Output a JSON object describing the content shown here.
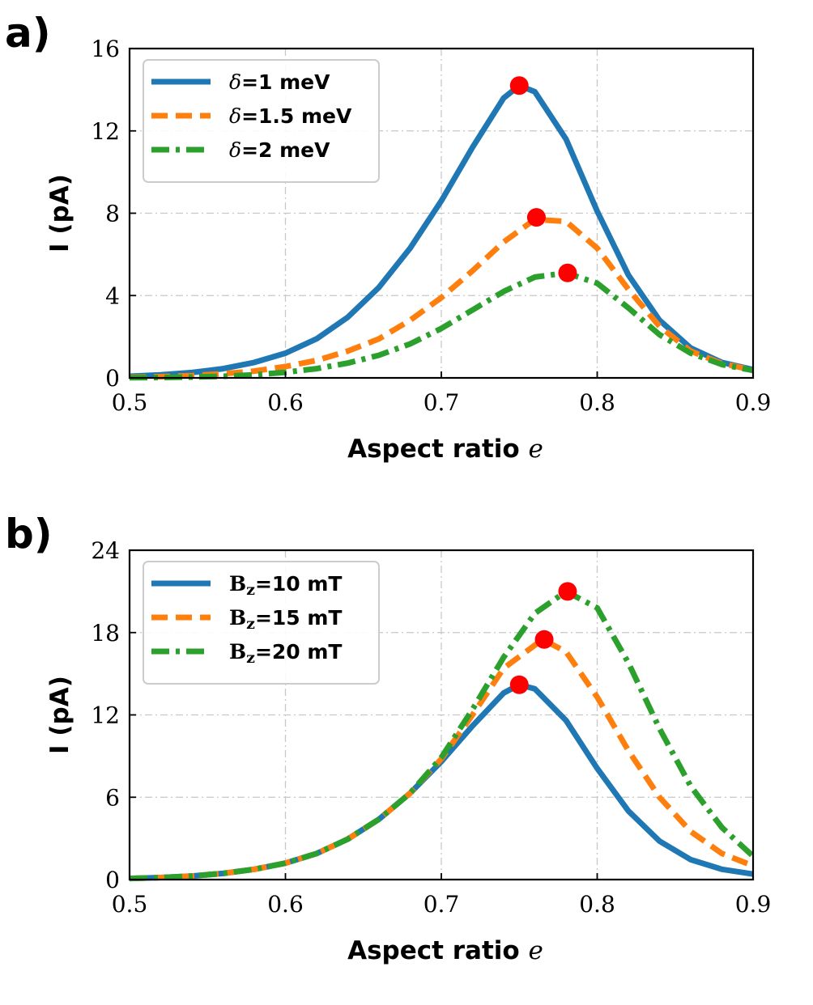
{
  "chart_data": [
    {
      "panel": "a)",
      "type": "line",
      "xlabel_text": "Aspect ratio",
      "xlabel_var": "e",
      "ylabel": "I (pA)",
      "xlim": [
        0.5,
        0.9
      ],
      "ylim": [
        0,
        16
      ],
      "xticks": [
        "0.5",
        "0.6",
        "0.7",
        "0.8",
        "0.9"
      ],
      "yticks": [
        "0",
        "4",
        "8",
        "12",
        "16"
      ],
      "legend_position": "top-left",
      "series": [
        {
          "name_symbol": "δ",
          "name_rest": "=1 meV",
          "color": "#1f77b4",
          "style": "solid",
          "x": [
            0.5,
            0.52,
            0.54,
            0.56,
            0.58,
            0.6,
            0.62,
            0.64,
            0.66,
            0.68,
            0.7,
            0.72,
            0.74,
            0.75,
            0.76,
            0.78,
            0.8,
            0.82,
            0.84,
            0.86,
            0.88,
            0.9
          ],
          "y": [
            0.08,
            0.15,
            0.26,
            0.45,
            0.75,
            1.2,
            1.9,
            2.95,
            4.4,
            6.3,
            8.6,
            11.2,
            13.6,
            14.2,
            13.9,
            11.6,
            8.1,
            5.0,
            2.8,
            1.45,
            0.75,
            0.4
          ]
        },
        {
          "name_symbol": "δ",
          "name_rest": "=1.5 meV",
          "color": "#ff7f0e",
          "style": "dashed",
          "x": [
            0.5,
            0.52,
            0.54,
            0.56,
            0.58,
            0.6,
            0.62,
            0.64,
            0.66,
            0.68,
            0.7,
            0.72,
            0.74,
            0.76,
            0.78,
            0.8,
            0.82,
            0.84,
            0.86,
            0.88,
            0.9
          ],
          "y": [
            0.03,
            0.06,
            0.11,
            0.2,
            0.33,
            0.55,
            0.85,
            1.3,
            1.9,
            2.8,
            3.9,
            5.2,
            6.6,
            7.7,
            7.6,
            6.3,
            4.3,
            2.5,
            1.3,
            0.7,
            0.38
          ]
        },
        {
          "name_symbol": "δ",
          "name_rest": "=2 meV",
          "color": "#2ca02c",
          "style": "dashdot",
          "x": [
            0.5,
            0.52,
            0.54,
            0.56,
            0.58,
            0.6,
            0.62,
            0.64,
            0.66,
            0.68,
            0.7,
            0.72,
            0.74,
            0.76,
            0.78,
            0.8,
            0.82,
            0.84,
            0.86,
            0.88,
            0.9
          ],
          "y": [
            0.01,
            0.02,
            0.04,
            0.08,
            0.15,
            0.27,
            0.45,
            0.72,
            1.1,
            1.65,
            2.4,
            3.3,
            4.2,
            4.9,
            5.1,
            4.6,
            3.4,
            2.1,
            1.2,
            0.65,
            0.36
          ]
        }
      ],
      "peaks": [
        {
          "x": 0.75,
          "y": 14.2
        },
        {
          "x": 0.761,
          "y": 7.8
        },
        {
          "x": 0.781,
          "y": 5.1
        }
      ],
      "peak_color": "#ff0000"
    },
    {
      "panel": "b)",
      "type": "line",
      "xlabel_text": "Aspect ratio",
      "xlabel_var": "e",
      "ylabel": "I (pA)",
      "xlim": [
        0.5,
        0.9
      ],
      "ylim": [
        0,
        24
      ],
      "xticks": [
        "0.5",
        "0.6",
        "0.7",
        "0.8",
        "0.9"
      ],
      "yticks": [
        "0",
        "6",
        "12",
        "18",
        "24"
      ],
      "legend_position": "top-left",
      "series": [
        {
          "name_symbol": "B",
          "name_sub": "z",
          "name_rest": "=10 mT",
          "color": "#1f77b4",
          "style": "solid",
          "x": [
            0.5,
            0.52,
            0.54,
            0.56,
            0.58,
            0.6,
            0.62,
            0.64,
            0.66,
            0.68,
            0.7,
            0.72,
            0.74,
            0.75,
            0.76,
            0.78,
            0.8,
            0.82,
            0.84,
            0.86,
            0.88,
            0.9
          ],
          "y": [
            0.08,
            0.15,
            0.26,
            0.45,
            0.75,
            1.2,
            1.9,
            2.95,
            4.4,
            6.3,
            8.6,
            11.2,
            13.6,
            14.2,
            13.9,
            11.6,
            8.1,
            5.0,
            2.8,
            1.45,
            0.75,
            0.4
          ]
        },
        {
          "name_symbol": "B",
          "name_sub": "z",
          "name_rest": "=15 mT",
          "color": "#ff7f0e",
          "style": "dashed",
          "x": [
            0.5,
            0.52,
            0.54,
            0.56,
            0.58,
            0.6,
            0.62,
            0.64,
            0.66,
            0.68,
            0.7,
            0.72,
            0.74,
            0.765,
            0.78,
            0.8,
            0.82,
            0.84,
            0.86,
            0.88,
            0.9
          ],
          "y": [
            0.08,
            0.15,
            0.26,
            0.45,
            0.75,
            1.2,
            1.9,
            2.95,
            4.4,
            6.3,
            8.8,
            12.0,
            15.4,
            17.5,
            16.6,
            13.3,
            9.4,
            6.0,
            3.5,
            1.9,
            1.0
          ]
        },
        {
          "name_symbol": "B",
          "name_sub": "z",
          "name_rest": "=20 mT",
          "color": "#2ca02c",
          "style": "dashdot",
          "x": [
            0.5,
            0.52,
            0.54,
            0.56,
            0.58,
            0.6,
            0.62,
            0.64,
            0.66,
            0.68,
            0.7,
            0.72,
            0.74,
            0.76,
            0.78,
            0.8,
            0.82,
            0.84,
            0.86,
            0.88,
            0.9
          ],
          "y": [
            0.08,
            0.15,
            0.26,
            0.45,
            0.75,
            1.2,
            1.9,
            2.95,
            4.4,
            6.3,
            8.9,
            12.4,
            16.2,
            19.4,
            21.0,
            19.8,
            15.8,
            11.0,
            6.8,
            3.8,
            1.7
          ]
        }
      ],
      "peaks": [
        {
          "x": 0.75,
          "y": 14.2
        },
        {
          "x": 0.766,
          "y": 17.5
        },
        {
          "x": 0.781,
          "y": 21.0
        }
      ],
      "peak_color": "#ff0000"
    }
  ]
}
